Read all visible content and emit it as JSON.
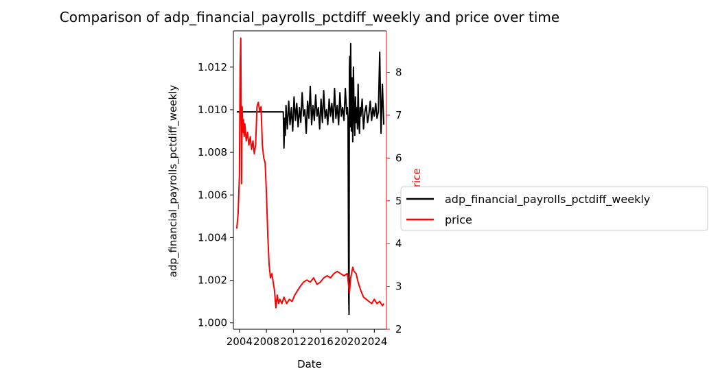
{
  "chart_data": {
    "type": "line",
    "title": "Comparison of adp_financial_payrolls_pctdiff_weekly and price over time",
    "xlabel": "Date",
    "ylabel_left": "adp_financial_payrolls_pctdiff_weekly",
    "ylabel_right": "price",
    "xlim": [
      2003.1,
      2025.8
    ],
    "ylim_left": [
      0.9997,
      1.0137
    ],
    "ylim_right": [
      2.0,
      8.97
    ],
    "x_ticks": [
      "2004",
      "2008",
      "2012",
      "2016",
      "2020",
      "2024"
    ],
    "y_ticks_left": [
      "1.000",
      "1.002",
      "1.004",
      "1.006",
      "1.008",
      "1.010",
      "1.012"
    ],
    "y_ticks_right": [
      "2",
      "3",
      "4",
      "5",
      "6",
      "7",
      "8"
    ],
    "grid": false,
    "legend_position": "outside-right",
    "colors": {
      "left_series": "#000000",
      "right_series": "#ff0000",
      "right_axis": "#ff0000"
    },
    "series": [
      {
        "name": "adp_financial_payrolls_pctdiff_weekly",
        "axis": "left",
        "x": [
          2003.6,
          2005.0,
          2007.0,
          2009.0,
          2010.5,
          2010.6,
          2010.7,
          2010.8,
          2010.9,
          2011.1,
          2011.3,
          2011.5,
          2011.7,
          2011.9,
          2012.1,
          2012.3,
          2012.5,
          2012.7,
          2012.9,
          2013.1,
          2013.3,
          2013.5,
          2013.7,
          2013.9,
          2014.1,
          2014.3,
          2014.5,
          2014.7,
          2014.9,
          2015.1,
          2015.3,
          2015.5,
          2015.7,
          2015.9,
          2016.1,
          2016.3,
          2016.5,
          2016.7,
          2016.9,
          2017.1,
          2017.3,
          2017.5,
          2017.7,
          2017.9,
          2018.1,
          2018.3,
          2018.5,
          2018.7,
          2018.9,
          2019.1,
          2019.3,
          2019.5,
          2019.7,
          2019.9,
          2020.0,
          2020.1,
          2020.2,
          2020.25,
          2020.3,
          2020.35,
          2020.4,
          2020.5,
          2020.6,
          2020.7,
          2020.8,
          2020.9,
          2021.0,
          2021.1,
          2021.2,
          2021.3,
          2021.4,
          2021.5,
          2021.6,
          2021.7,
          2021.8,
          2021.9,
          2022.0,
          2022.2,
          2022.4,
          2022.6,
          2022.8,
          2023.0,
          2023.2,
          2023.4,
          2023.6,
          2023.8,
          2024.0,
          2024.2,
          2024.4,
          2024.6,
          2024.8,
          2025.0,
          2025.2,
          2025.4
        ],
        "y": [
          1.0099,
          1.0099,
          1.0099,
          1.0099,
          1.0099,
          1.0082,
          1.0096,
          1.0088,
          1.0102,
          1.0091,
          1.0104,
          1.0093,
          1.0101,
          1.009,
          1.0106,
          1.0095,
          1.0103,
          1.0092,
          1.0101,
          1.0094,
          1.0108,
          1.0097,
          1.01,
          1.0089,
          1.0104,
          1.0096,
          1.0111,
          1.0093,
          1.0102,
          1.0095,
          1.0107,
          1.0097,
          1.0101,
          1.0091,
          1.0105,
          1.0094,
          1.0109,
          1.0096,
          1.01,
          1.0093,
          1.0105,
          1.0097,
          1.0103,
          1.0094,
          1.011,
          1.0096,
          1.0102,
          1.0093,
          1.0108,
          1.0097,
          1.0101,
          1.0095,
          1.011,
          1.0098,
          1.0101,
          1.0096,
          1.0012,
          1.0004,
          1.0118,
          1.0125,
          1.0092,
          1.0131,
          1.009,
          1.0115,
          1.0085,
          1.012,
          1.0099,
          1.0088,
          1.0106,
          1.0094,
          1.0101,
          1.0091,
          1.0112,
          1.0095,
          1.0089,
          1.0101,
          1.0097,
          1.0105,
          1.0091,
          1.0099,
          1.0102,
          1.0094,
          1.0098,
          1.0104,
          1.0095,
          1.0101,
          1.0097,
          1.0103,
          1.0096,
          1.0099,
          1.0127,
          1.0089,
          1.0112,
          1.0093
        ]
      },
      {
        "name": "price",
        "axis": "right",
        "x": [
          2003.6,
          2003.8,
          2004.0,
          2004.1,
          2004.2,
          2004.3,
          2004.4,
          2004.5,
          2004.6,
          2004.7,
          2004.8,
          2005.0,
          2005.2,
          2005.4,
          2005.6,
          2005.8,
          2006.0,
          2006.2,
          2006.4,
          2006.6,
          2006.8,
          2007.0,
          2007.2,
          2007.4,
          2007.6,
          2007.8,
          2008.0,
          2008.2,
          2008.4,
          2008.6,
          2008.8,
          2009.0,
          2009.2,
          2009.4,
          2009.6,
          2009.8,
          2010.0,
          2010.3,
          2010.6,
          2011.0,
          2011.4,
          2011.8,
          2012.2,
          2012.6,
          2013.0,
          2013.5,
          2014.0,
          2014.5,
          2015.0,
          2015.5,
          2016.0,
          2016.5,
          2017.0,
          2017.5,
          2018.0,
          2018.5,
          2019.0,
          2019.5,
          2020.0,
          2020.2,
          2020.3,
          2020.5,
          2020.8,
          2021.0,
          2021.3,
          2021.6,
          2022.0,
          2022.4,
          2022.8,
          2023.2,
          2023.6,
          2024.0,
          2024.4,
          2024.8,
          2025.2,
          2025.4
        ],
        "y": [
          4.35,
          4.7,
          5.6,
          8.2,
          8.8,
          5.4,
          7.2,
          6.6,
          6.9,
          6.5,
          6.8,
          6.4,
          6.6,
          6.3,
          6.5,
          6.2,
          6.4,
          6.1,
          6.3,
          7.2,
          7.3,
          7.1,
          7.2,
          6.3,
          6.0,
          5.9,
          5.2,
          4.2,
          3.5,
          3.2,
          3.3,
          3.1,
          2.9,
          2.5,
          2.8,
          2.6,
          2.7,
          2.6,
          2.75,
          2.6,
          2.7,
          2.65,
          2.8,
          2.9,
          3.0,
          3.1,
          3.15,
          3.1,
          3.2,
          3.05,
          3.1,
          3.2,
          3.25,
          3.2,
          3.3,
          3.35,
          3.3,
          3.25,
          3.3,
          3.0,
          2.85,
          3.2,
          3.45,
          3.35,
          3.3,
          3.1,
          2.9,
          2.75,
          2.7,
          2.65,
          2.6,
          2.7,
          2.6,
          2.65,
          2.55,
          2.6
        ]
      }
    ]
  }
}
